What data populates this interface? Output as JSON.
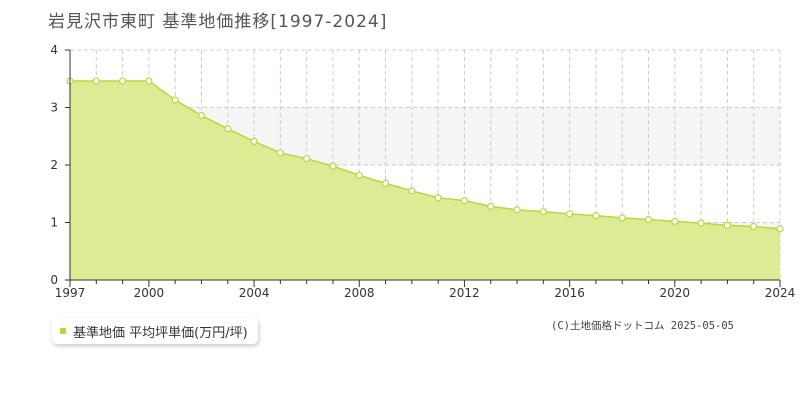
{
  "title": "岩見沢市東町  基準地価推移[1997-2024]",
  "colors": {
    "fill": "#dcec94",
    "line": "#b6d93e",
    "marker_fill": "#ffffff",
    "band": "#f5f5f5",
    "grid": "#cccccc",
    "axis": "#333333"
  },
  "legend": {
    "label": "基準地価 平均坪単価(万円/坪)"
  },
  "copyright": "(C)土地価格ドットコム 2025-05-05",
  "chart_data": {
    "type": "area",
    "title": "岩見沢市東町  基準地価推移[1997-2024]",
    "xlabel": "",
    "ylabel": "",
    "xlim": [
      1997,
      2024
    ],
    "ylim": [
      0,
      4
    ],
    "x_ticks": [
      "1997",
      "2000",
      "2004",
      "2008",
      "2012",
      "2016",
      "2020",
      "2024"
    ],
    "y_ticks": [
      "0",
      "1",
      "2",
      "3",
      "4"
    ],
    "grid": true,
    "legend_position": "bottom-left",
    "series": [
      {
        "name": "基準地価 平均坪単価(万円/坪)",
        "x": [
          1997,
          1998,
          1999,
          2000,
          2001,
          2002,
          2003,
          2004,
          2005,
          2006,
          2007,
          2008,
          2009,
          2010,
          2011,
          2012,
          2013,
          2014,
          2015,
          2016,
          2017,
          2018,
          2019,
          2020,
          2021,
          2022,
          2023,
          2024
        ],
        "values": [
          3.46,
          3.46,
          3.46,
          3.46,
          3.13,
          2.86,
          2.63,
          2.41,
          2.21,
          2.11,
          1.98,
          1.82,
          1.68,
          1.55,
          1.43,
          1.38,
          1.28,
          1.22,
          1.19,
          1.15,
          1.12,
          1.08,
          1.05,
          1.02,
          0.99,
          0.95,
          0.93,
          0.89
        ]
      }
    ]
  }
}
